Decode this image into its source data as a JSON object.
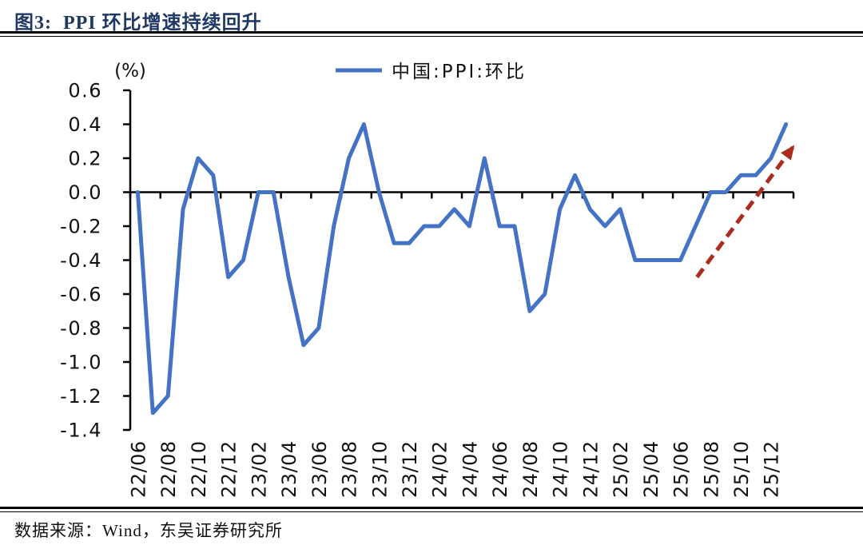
{
  "figure": {
    "title": "图3:  PPI 环比增速持续回升",
    "source": "数据来源：Wind，东吴证券研究所"
  },
  "chart_data": {
    "type": "line",
    "title": "",
    "unit_label": "(%)",
    "legend": [
      "中国:PPI:环比"
    ],
    "legend_position": "top-center",
    "grid": false,
    "ylim": [
      -1.4,
      0.6
    ],
    "ytick_step": 0.2,
    "ytick_labels": [
      "0.6",
      "0.4",
      "0.2",
      "0.0",
      "-0.2",
      "-0.4",
      "-0.6",
      "-0.8",
      "-1.0",
      "-1.2",
      "-1.4"
    ],
    "x_tick_labels": [
      "22/06",
      "22/08",
      "22/10",
      "22/12",
      "23/02",
      "23/04",
      "23/06",
      "23/08",
      "23/10",
      "23/12",
      "24/02",
      "24/04",
      "24/06",
      "24/08",
      "24/10",
      "24/12",
      "25/02",
      "25/04",
      "25/06",
      "25/08",
      "25/10",
      "25/12"
    ],
    "categories": [
      "22/06",
      "22/07",
      "22/08",
      "22/09",
      "22/10",
      "22/11",
      "22/12",
      "23/01",
      "23/02",
      "23/03",
      "23/04",
      "23/05",
      "23/06",
      "23/07",
      "23/08",
      "23/09",
      "23/10",
      "23/11",
      "23/12",
      "24/01",
      "24/02",
      "24/03",
      "24/04",
      "24/05",
      "24/06",
      "24/07",
      "24/08",
      "24/09",
      "24/10",
      "24/11",
      "24/12",
      "25/01",
      "25/02",
      "25/03",
      "25/04",
      "25/05",
      "25/06",
      "25/07",
      "25/08",
      "25/09",
      "25/10",
      "25/11",
      "25/12",
      "26/01"
    ],
    "series": [
      {
        "name": "中国:PPI:环比",
        "color": "#4472C4",
        "values": [
          0.0,
          -1.3,
          -1.2,
          -0.1,
          0.2,
          0.1,
          -0.5,
          -0.4,
          0.0,
          0.0,
          -0.5,
          -0.9,
          -0.8,
          -0.2,
          0.2,
          0.4,
          0.0,
          -0.3,
          -0.3,
          -0.2,
          -0.2,
          -0.1,
          -0.2,
          0.2,
          -0.2,
          -0.2,
          -0.7,
          -0.6,
          -0.1,
          0.1,
          -0.1,
          -0.2,
          -0.1,
          -0.4,
          -0.4,
          -0.4,
          -0.4,
          -0.2,
          0.0,
          0.0,
          0.1,
          0.1,
          0.2,
          0.4
        ]
      }
    ],
    "annotations": [
      {
        "type": "dashed-arrow",
        "color": "#AB2D21",
        "from": {
          "index": 37.1,
          "value": -0.5
        },
        "to": {
          "index": 43.5,
          "value": 0.27
        }
      }
    ]
  },
  "colors": {
    "title": "#1F3864",
    "line": "#4472C4",
    "arrow": "#AB2D21",
    "axis": "#000000"
  }
}
